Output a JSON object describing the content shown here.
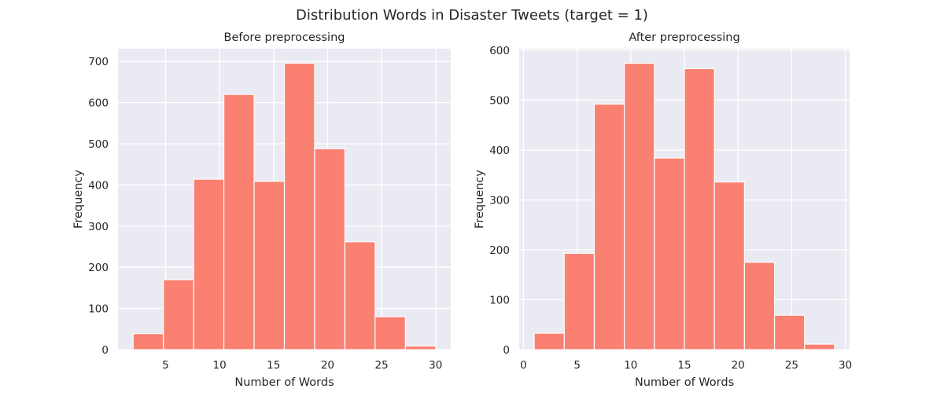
{
  "figure": {
    "suptitle": "Distribution Words in Disaster Tweets (target = 1)"
  },
  "colors": {
    "bar": "#fa8072",
    "axes_bg": "#eaeaf2",
    "grid": "#ffffff",
    "text": "#262626"
  },
  "chart_data": [
    {
      "type": "bar",
      "subtype": "histogram",
      "title": "Before preprocessing",
      "xlabel": "Number of Words",
      "ylabel": "Frequency",
      "xlim": [
        0.6,
        31.4
      ],
      "ylim": [
        0,
        731
      ],
      "xticks": [
        5,
        10,
        15,
        20,
        25,
        30
      ],
      "yticks": [
        0,
        100,
        200,
        300,
        400,
        500,
        600,
        700
      ],
      "grid": true,
      "bins": [
        {
          "start": 2.0,
          "end": 4.8,
          "value": 39
        },
        {
          "start": 4.8,
          "end": 7.6,
          "value": 170
        },
        {
          "start": 7.6,
          "end": 10.4,
          "value": 414
        },
        {
          "start": 10.4,
          "end": 13.2,
          "value": 620
        },
        {
          "start": 13.2,
          "end": 16.0,
          "value": 409
        },
        {
          "start": 16.0,
          "end": 18.8,
          "value": 696
        },
        {
          "start": 18.8,
          "end": 21.6,
          "value": 488
        },
        {
          "start": 21.6,
          "end": 24.4,
          "value": 262
        },
        {
          "start": 24.4,
          "end": 27.2,
          "value": 80
        },
        {
          "start": 27.2,
          "end": 30.0,
          "value": 9
        }
      ]
    },
    {
      "type": "bar",
      "subtype": "histogram",
      "title": "After preprocessing",
      "xlabel": "Number of Words",
      "ylabel": "Frequency",
      "xlim": [
        -0.4,
        30.4
      ],
      "ylim": [
        0,
        603
      ],
      "xticks": [
        0,
        5,
        10,
        15,
        20,
        25,
        30
      ],
      "yticks": [
        0,
        100,
        200,
        300,
        400,
        500,
        600
      ],
      "grid": true,
      "bins": [
        {
          "start": 1.0,
          "end": 3.8,
          "value": 33
        },
        {
          "start": 3.8,
          "end": 6.6,
          "value": 193
        },
        {
          "start": 6.6,
          "end": 9.4,
          "value": 492
        },
        {
          "start": 9.4,
          "end": 12.2,
          "value": 574
        },
        {
          "start": 12.2,
          "end": 15.0,
          "value": 384
        },
        {
          "start": 15.0,
          "end": 17.8,
          "value": 563
        },
        {
          "start": 17.8,
          "end": 20.6,
          "value": 336
        },
        {
          "start": 20.6,
          "end": 23.4,
          "value": 175
        },
        {
          "start": 23.4,
          "end": 26.2,
          "value": 69
        },
        {
          "start": 26.2,
          "end": 29.0,
          "value": 11
        }
      ]
    }
  ]
}
